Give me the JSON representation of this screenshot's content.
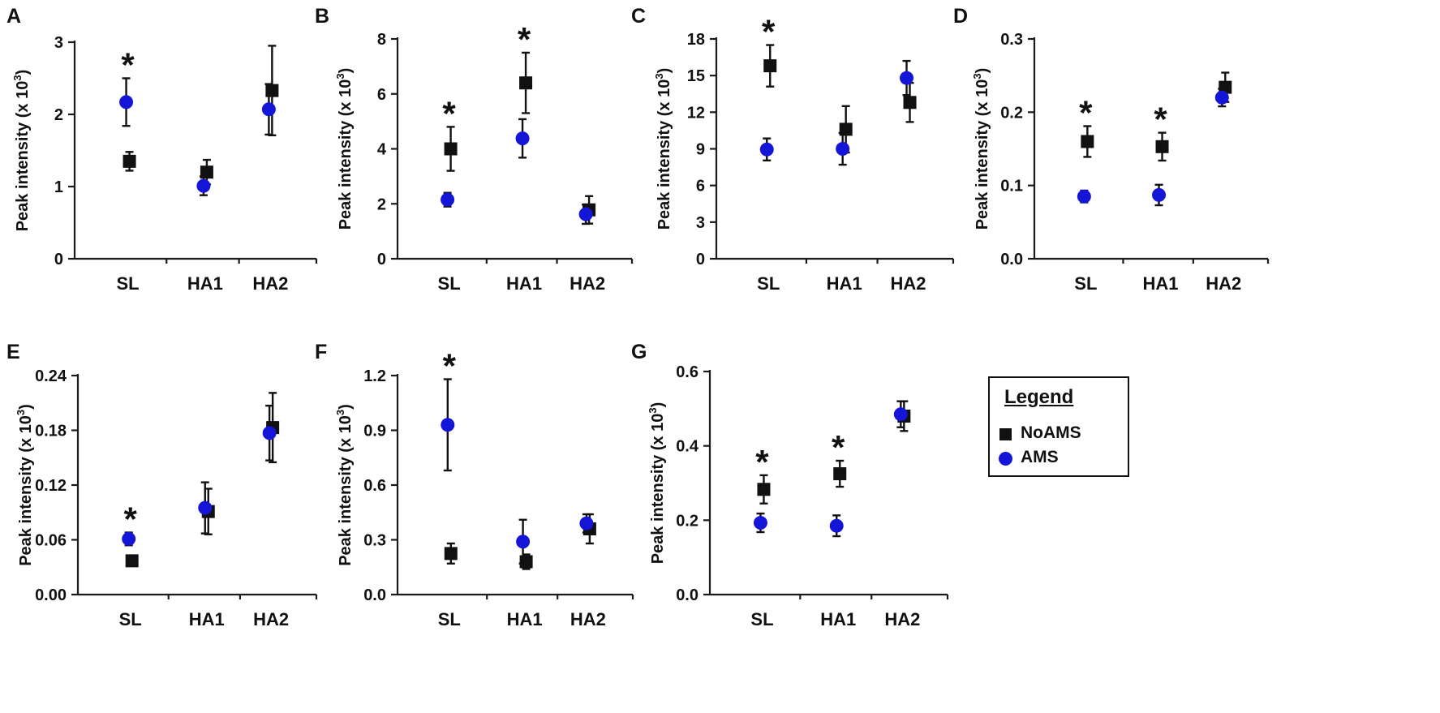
{
  "figure": {
    "y_axis_label": "Peak intensity (x 10",
    "y_axis_exp": "3",
    "y_axis_close": ")",
    "significance_mark": "*",
    "legend": {
      "title": "Legend",
      "entries": [
        {
          "label": "NoAMS",
          "marker": "square",
          "color": "#111111"
        },
        {
          "label": "AMS",
          "marker": "circle",
          "color": "#1515d8"
        }
      ]
    }
  },
  "chart_data": [
    {
      "panel": "A",
      "type": "scatter",
      "categories": [
        "SL",
        "HA1",
        "HA2"
      ],
      "ylim": [
        0,
        3
      ],
      "yticks": [
        "0",
        "1",
        "2",
        "3"
      ],
      "ytick_values": [
        0,
        1,
        2,
        3
      ],
      "series": [
        {
          "name": "NoAMS",
          "values": [
            1.35,
            1.2,
            2.33
          ],
          "errors": [
            0.13,
            0.17,
            0.62
          ]
        },
        {
          "name": "AMS",
          "values": [
            2.17,
            1.01,
            2.07
          ],
          "errors": [
            0.33,
            0.13,
            0.35
          ]
        }
      ],
      "significant": [
        "SL"
      ]
    },
    {
      "panel": "B",
      "type": "scatter",
      "categories": [
        "SL",
        "HA1",
        "HA2"
      ],
      "ylim": [
        0,
        8
      ],
      "yticks": [
        "0",
        "2",
        "4",
        "6",
        "8"
      ],
      "ytick_values": [
        0,
        2,
        4,
        6,
        8
      ],
      "series": [
        {
          "name": "NoAMS",
          "values": [
            4.0,
            6.4,
            1.78
          ],
          "errors": [
            0.8,
            1.1,
            0.5
          ]
        },
        {
          "name": "AMS",
          "values": [
            2.15,
            4.38,
            1.62
          ],
          "errors": [
            0.25,
            0.7,
            0.35
          ]
        }
      ],
      "significant": [
        "SL",
        "HA1"
      ]
    },
    {
      "panel": "C",
      "type": "scatter",
      "categories": [
        "SL",
        "HA1",
        "HA2"
      ],
      "ylim": [
        0,
        18
      ],
      "yticks": [
        "0",
        "3",
        "6",
        "9",
        "12",
        "15",
        "18"
      ],
      "ytick_values": [
        0,
        3,
        6,
        9,
        12,
        15,
        18
      ],
      "series": [
        {
          "name": "NoAMS",
          "values": [
            15.8,
            10.6,
            12.8
          ],
          "errors": [
            1.7,
            1.9,
            1.6
          ]
        },
        {
          "name": "AMS",
          "values": [
            8.95,
            9.0,
            14.8
          ],
          "errors": [
            0.9,
            1.3,
            1.4
          ]
        }
      ],
      "significant": [
        "SL"
      ]
    },
    {
      "panel": "D",
      "type": "scatter",
      "categories": [
        "SL",
        "HA1",
        "HA2"
      ],
      "ylim": [
        0,
        0.3
      ],
      "yticks": [
        "0.0",
        "0.1",
        "0.2",
        "0.3"
      ],
      "ytick_values": [
        0,
        0.1,
        0.2,
        0.3
      ],
      "series": [
        {
          "name": "NoAMS",
          "values": [
            0.16,
            0.153,
            0.234
          ],
          "errors": [
            0.021,
            0.019,
            0.02
          ]
        },
        {
          "name": "AMS",
          "values": [
            0.085,
            0.087,
            0.22
          ],
          "errors": [
            0.008,
            0.014,
            0.012
          ]
        }
      ],
      "significant": [
        "SL",
        "HA1"
      ]
    },
    {
      "panel": "E",
      "type": "scatter",
      "categories": [
        "SL",
        "HA1",
        "HA2"
      ],
      "ylim": [
        0,
        0.24
      ],
      "yticks": [
        "0.00",
        "0.06",
        "0.12",
        "0.18",
        "0.24"
      ],
      "ytick_values": [
        0,
        0.06,
        0.12,
        0.18,
        0.24
      ],
      "series": [
        {
          "name": "NoAMS",
          "values": [
            0.037,
            0.091,
            0.183
          ],
          "errors": [
            0.003,
            0.025,
            0.038
          ]
        },
        {
          "name": "AMS",
          "values": [
            0.061,
            0.095,
            0.177
          ],
          "errors": [
            0.007,
            0.028,
            0.03
          ]
        }
      ],
      "significant": [
        "SL"
      ]
    },
    {
      "panel": "F",
      "type": "scatter",
      "categories": [
        "SL",
        "HA1",
        "HA2"
      ],
      "ylim": [
        0,
        1.2
      ],
      "yticks": [
        "0.0",
        "0.3",
        "0.6",
        "0.9",
        "1.2"
      ],
      "ytick_values": [
        0,
        0.3,
        0.6,
        0.9,
        1.2
      ],
      "series": [
        {
          "name": "NoAMS",
          "values": [
            0.225,
            0.18,
            0.36
          ],
          "errors": [
            0.055,
            0.04,
            0.08
          ]
        },
        {
          "name": "AMS",
          "values": [
            0.93,
            0.29,
            0.39
          ],
          "errors": [
            0.25,
            0.12,
            0.05
          ]
        }
      ],
      "significant": [
        "SL"
      ]
    },
    {
      "panel": "G",
      "type": "scatter",
      "categories": [
        "SL",
        "HA1",
        "HA2"
      ],
      "ylim": [
        0,
        0.6
      ],
      "yticks": [
        "0.0",
        "0.2",
        "0.4",
        "0.6"
      ],
      "ytick_values": [
        0,
        0.2,
        0.4,
        0.6
      ],
      "series": [
        {
          "name": "NoAMS",
          "values": [
            0.283,
            0.325,
            0.48
          ],
          "errors": [
            0.038,
            0.035,
            0.04
          ]
        },
        {
          "name": "AMS",
          "values": [
            0.193,
            0.185,
            0.485
          ],
          "errors": [
            0.025,
            0.028,
            0.035
          ]
        }
      ],
      "significant": [
        "SL",
        "HA1"
      ]
    }
  ]
}
